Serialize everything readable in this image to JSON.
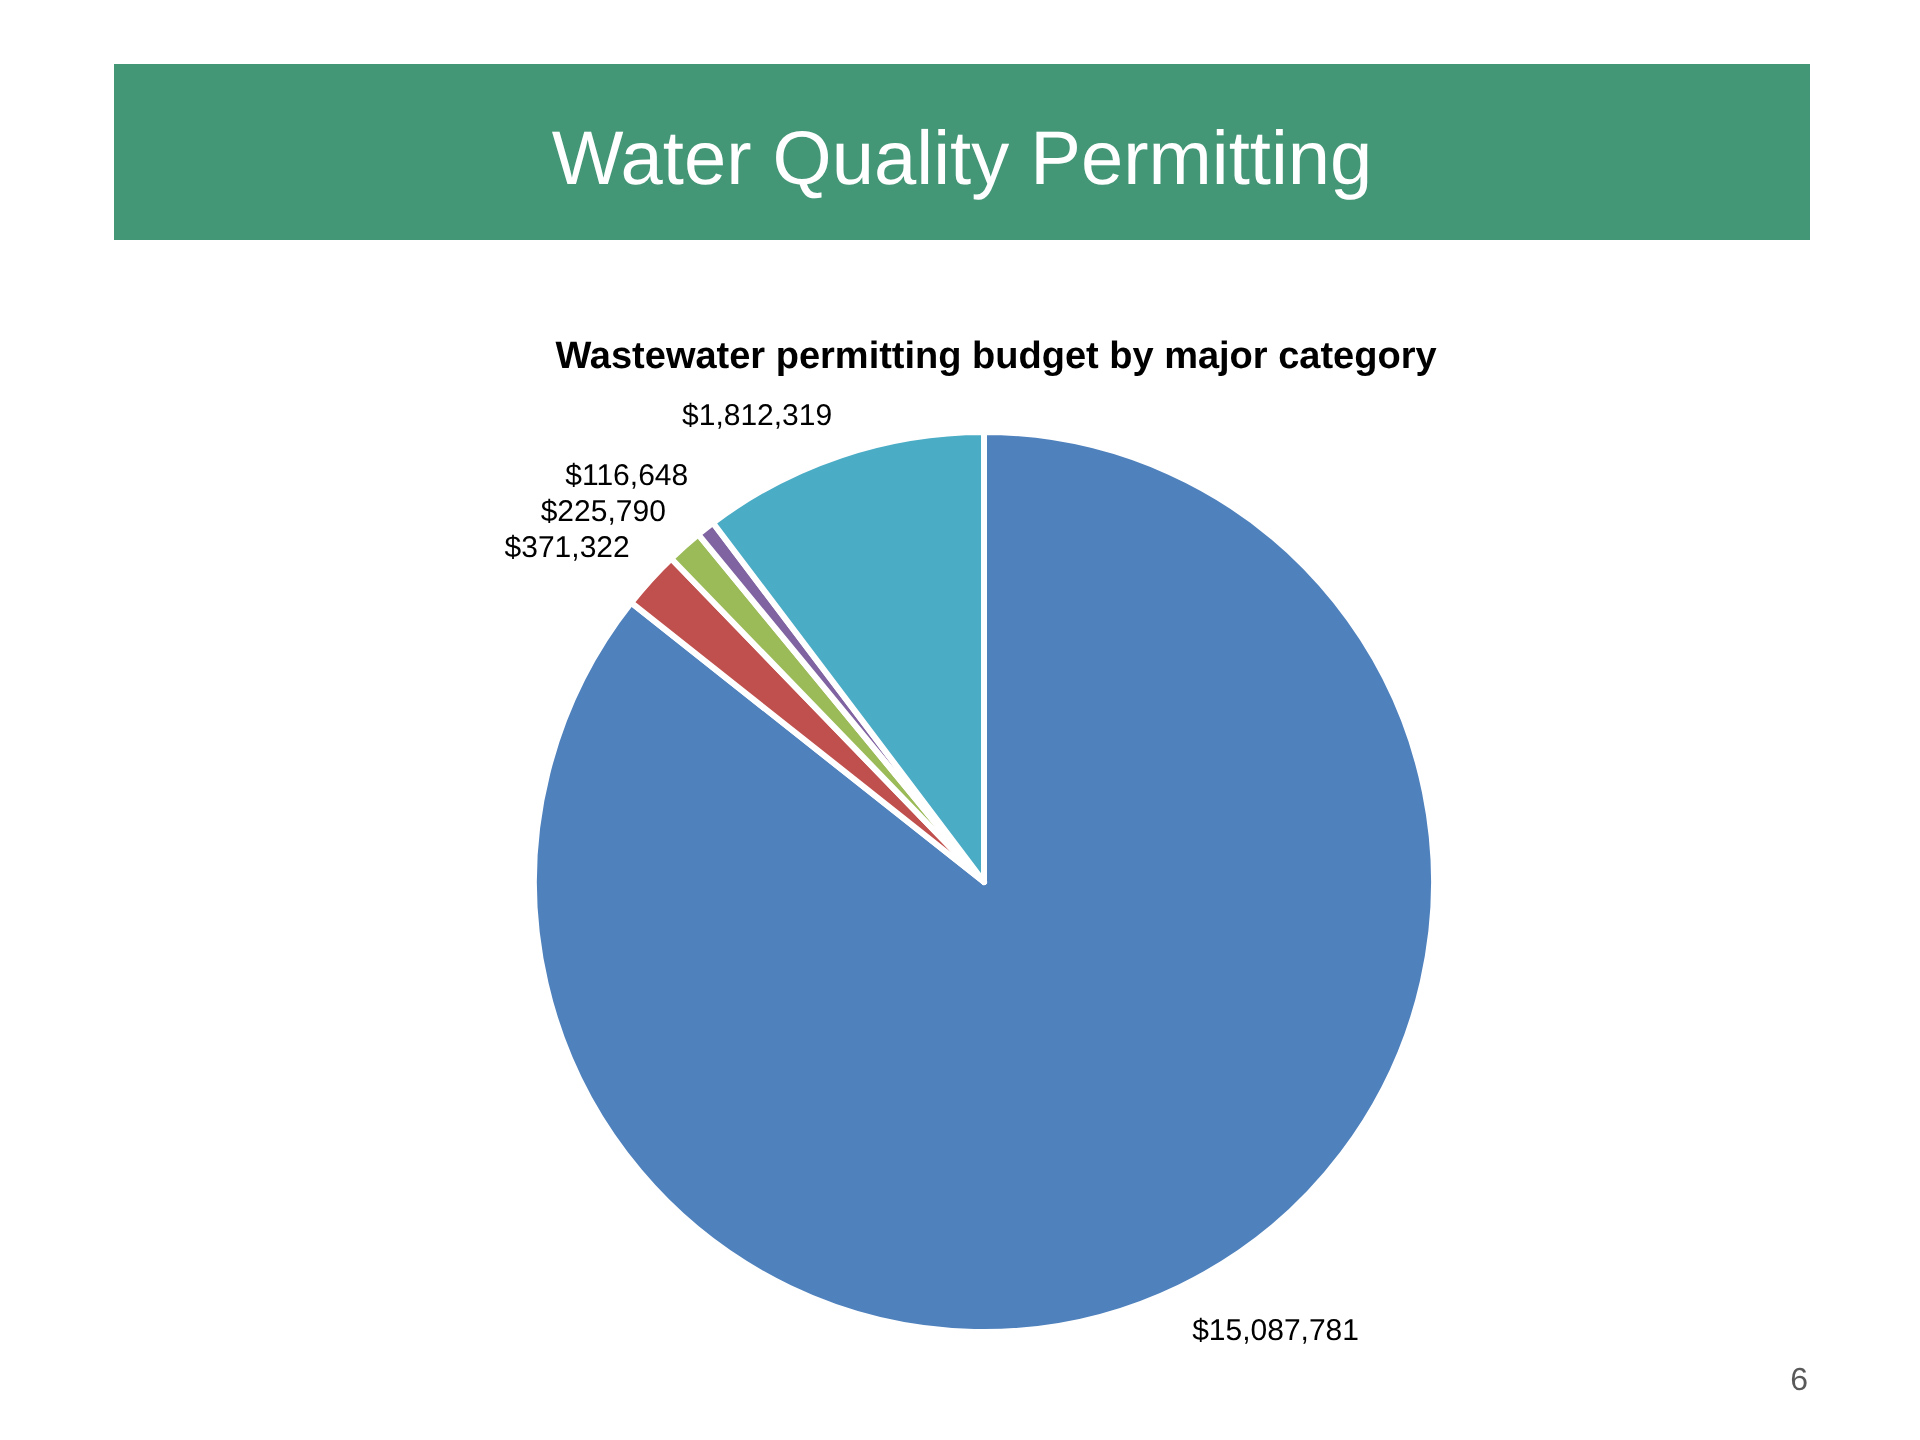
{
  "chart_data": {
    "type": "pie",
    "title": "Water Quality Permitting",
    "subtitle": "Wastewater permitting budget by major category",
    "categories": [
      null,
      null,
      null,
      null,
      null
    ],
    "values": [
      15087781,
      371322,
      225790,
      116648,
      1812319
    ],
    "colors": [
      "#4f81bd",
      "#c0504d",
      "#9bbb59",
      "#8064a2",
      "#4bacc6"
    ],
    "value_labels": [
      "$15,087,781",
      "$371,322",
      "$225,790",
      "$116,648",
      "$1,812,319"
    ],
    "annotations": [
      "6"
    ]
  }
}
